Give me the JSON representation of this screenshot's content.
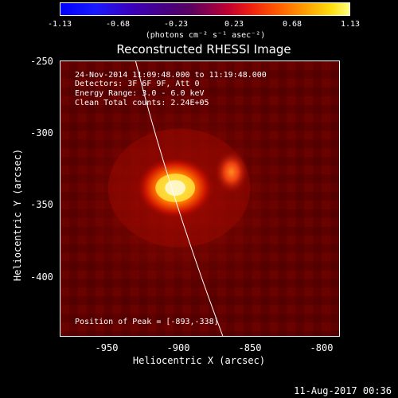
{
  "colorbar": {
    "ticks": [
      "-1.13",
      "-0.68",
      "-0.23",
      "0.23",
      "0.68",
      "1.13"
    ],
    "units": "(photons cm⁻² s⁻¹ asec⁻²)"
  },
  "title": "Reconstructed RHESSI Image",
  "info": {
    "time": "24-Nov-2014 11:09:48.000 to 11:19:48.000",
    "detectors": "Detectors: 3F 6F 9F, Att 0",
    "energy": "Energy Range: 3.0 - 6.0 keV",
    "clean": "Clean    Total counts: 2.24E+05"
  },
  "peak": "Position of Peak = [-893,-338]",
  "axes": {
    "xlabel": "Heliocentric X (arcsec)",
    "ylabel": "Heliocentric Y (arcsec)",
    "xticks": [
      "-950",
      "-900",
      "-850",
      "-800"
    ],
    "yticks": [
      "-250",
      "-300",
      "-350",
      "-400"
    ]
  },
  "footer": "11-Aug-2017 00:36",
  "colors": {
    "background": "#000000",
    "low": "#0000ff",
    "mid": "#800050",
    "high": "#ffff80",
    "limb": "#ffffff"
  }
}
